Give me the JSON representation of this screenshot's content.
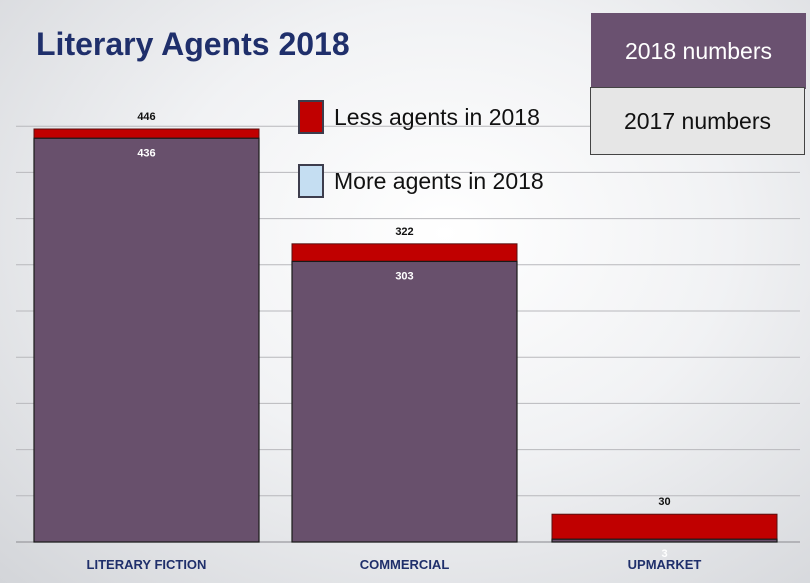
{
  "title": "Literary Agents 2018",
  "legend": {
    "less": {
      "label": "Less agents in 2018",
      "color": "#c00000"
    },
    "more": {
      "label": "More agents in 2018",
      "color": "#c5def2"
    }
  },
  "boxes": {
    "numbers_2018": "2018 numbers",
    "numbers_2017": "2017 numbers"
  },
  "chart_data": {
    "type": "bar",
    "title": "Literary Agents 2018",
    "categories": [
      "LITERARY FICTION",
      "COMMERCIAL",
      "UPMARKET"
    ],
    "series": [
      {
        "name": "2018 numbers",
        "values": [
          436,
          303,
          3
        ],
        "labels": [
          "436",
          "303",
          "3"
        ],
        "color": "#68506c"
      },
      {
        "name": "2017 numbers",
        "values": [
          446,
          322,
          30
        ],
        "labels": [
          "446",
          "322",
          "30"
        ]
      }
    ],
    "ylim": [
      0,
      446
    ],
    "grid": true,
    "colors": {
      "decrease": "#c00000",
      "increase": "#5cb8dc",
      "axis_text": "#1f2f6b"
    }
  }
}
